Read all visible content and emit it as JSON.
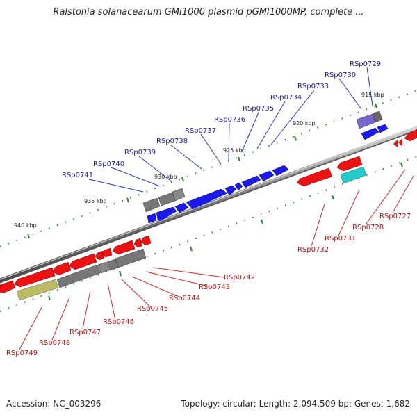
{
  "title": "Ralstonia solanacearum GMI1000 plasmid pGMI1000MP, complete ...",
  "footer": {
    "accession": "Accession: NC_003296",
    "summary": "Topology: circular; Length: 2,094,509 bp; Genes: 1,682"
  },
  "ticks": [
    "915 kbp",
    "920 kbp",
    "925 kbp",
    "930 kbp",
    "935 kbp",
    "940 kbp"
  ],
  "forward_genes": [
    "RSp0729",
    "RSp0730",
    "RSp0733",
    "RSp0734",
    "RSp0735",
    "RSp0736",
    "RSp0737",
    "RSp0738",
    "RSp0739",
    "RSp0740",
    "RSp0741"
  ],
  "reverse_genes": [
    "RSp0727",
    "RSp0728",
    "RSp0731",
    "RSp0732",
    "RSp0742",
    "RSp0743",
    "RSp0744",
    "RSp0745",
    "RSp0746",
    "RSp0747",
    "RSp0748",
    "RSp0749"
  ],
  "colors": {
    "forward_cds": "#1a1aee",
    "reverse_cds": "#ee1111",
    "pseudo": "#777777",
    "purple": "#7766cc",
    "cyan": "#22cccc",
    "olive": "#bbbb66",
    "backbone": "#888888",
    "forward_label": "#1a1aaa",
    "reverse_label": "#bb1111",
    "tick_mark": "#228822"
  }
}
